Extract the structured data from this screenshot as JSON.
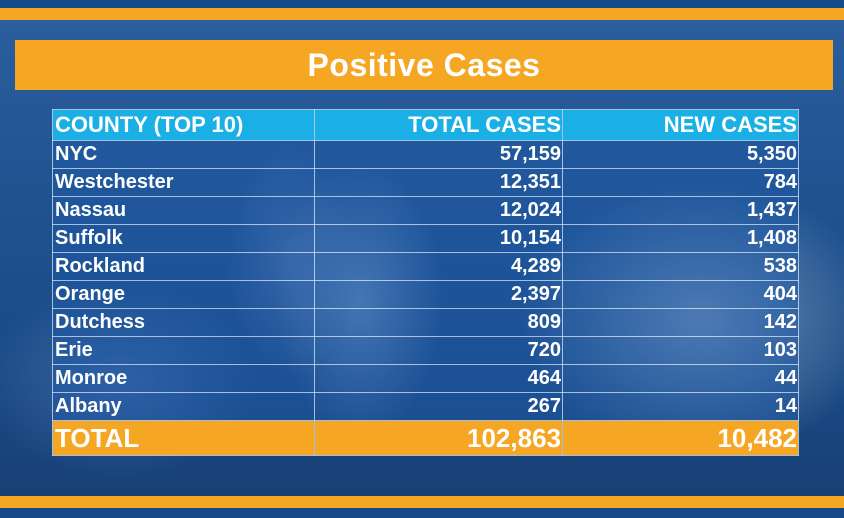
{
  "title": "Positive Cases",
  "colors": {
    "accent": "#f5a623",
    "header": "#1ab0e6",
    "background": "#1d4f8e",
    "text": "#ffffff"
  },
  "table": {
    "headers": [
      "COUNTY (TOP 10)",
      "TOTAL CASES",
      "NEW CASES"
    ],
    "rows": [
      {
        "county": "NYC",
        "total": "57,159",
        "new": "5,350"
      },
      {
        "county": "Westchester",
        "total": "12,351",
        "new": "784"
      },
      {
        "county": "Nassau",
        "total": "12,024",
        "new": "1,437"
      },
      {
        "county": "Suffolk",
        "total": "10,154",
        "new": "1,408"
      },
      {
        "county": "Rockland",
        "total": "4,289",
        "new": "538"
      },
      {
        "county": "Orange",
        "total": "2,397",
        "new": "404"
      },
      {
        "county": "Dutchess",
        "total": "809",
        "new": "142"
      },
      {
        "county": "Erie",
        "total": "720",
        "new": "103"
      },
      {
        "county": "Monroe",
        "total": "464",
        "new": "44"
      },
      {
        "county": "Albany",
        "total": "267",
        "new": "14"
      }
    ],
    "total": {
      "label": "TOTAL",
      "total": "102,863",
      "new": "10,482"
    }
  }
}
